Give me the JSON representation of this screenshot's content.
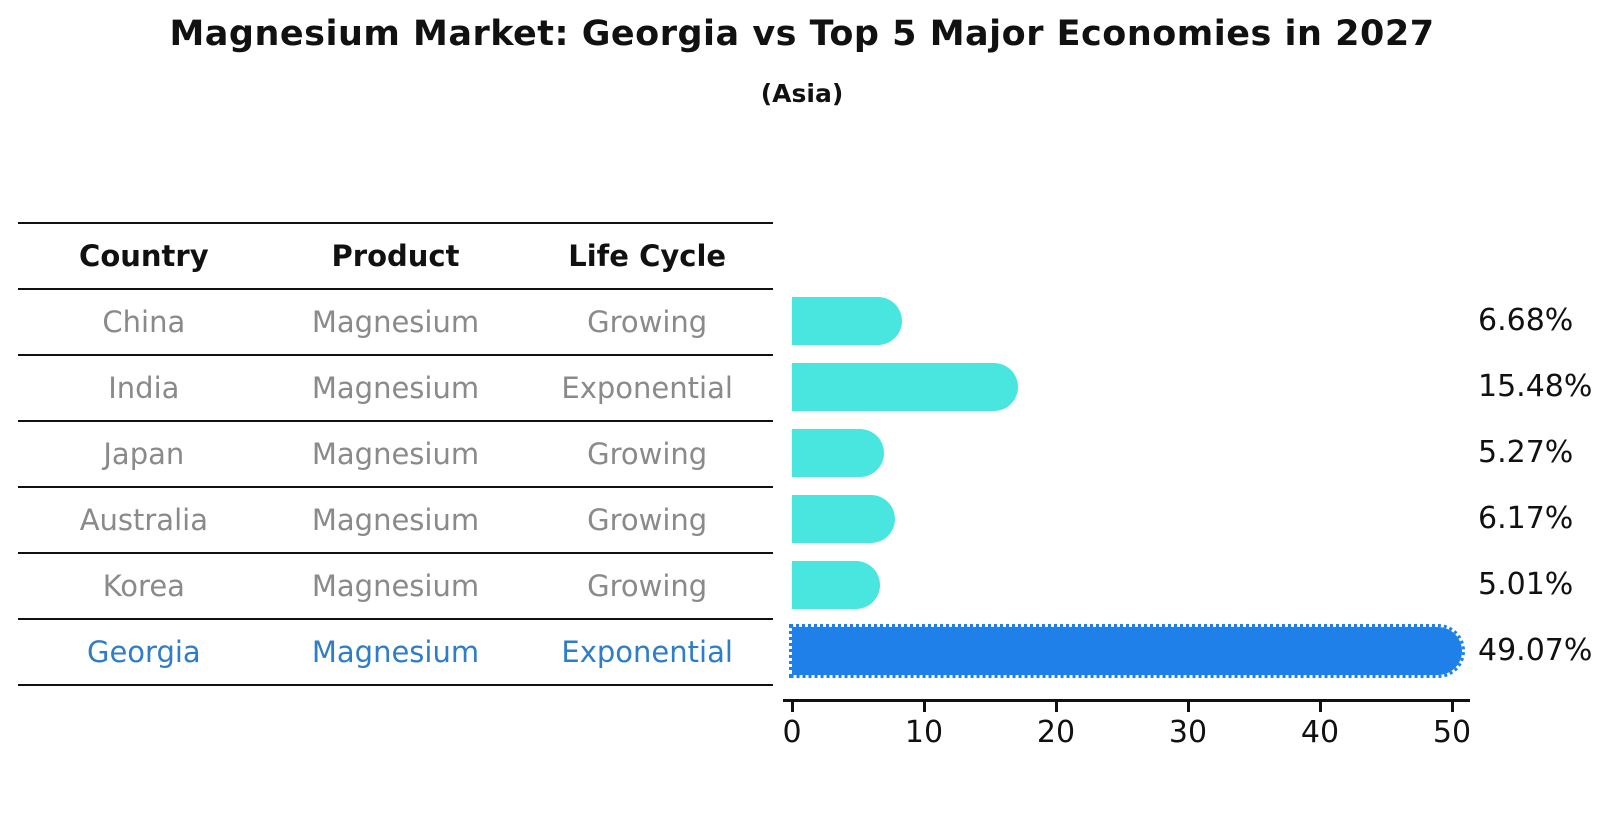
{
  "header": {
    "title": "Magnesium Market: Georgia vs Top 5 Major Economies in 2027",
    "subtitle": "(Asia)"
  },
  "table": {
    "columns": [
      "Country",
      "Product",
      "Life Cycle"
    ],
    "rows": [
      {
        "country": "China",
        "product": "Magnesium",
        "life_cycle": "Growing",
        "highlight": false
      },
      {
        "country": "India",
        "product": "Magnesium",
        "life_cycle": "Exponential",
        "highlight": false
      },
      {
        "country": "Japan",
        "product": "Magnesium",
        "life_cycle": "Growing",
        "highlight": false
      },
      {
        "country": "Australia",
        "product": "Magnesium",
        "life_cycle": "Growing",
        "highlight": false
      },
      {
        "country": "Korea",
        "product": "Magnesium",
        "life_cycle": "Growing",
        "highlight": false
      },
      {
        "country": "Georgia",
        "product": "Magnesium",
        "life_cycle": "Exponential",
        "highlight": true
      }
    ]
  },
  "chart_data": {
    "type": "bar",
    "orientation": "horizontal",
    "title": "Magnesium Market: Georgia vs Top 5 Major Economies in 2027",
    "subtitle": "(Asia)",
    "categories": [
      "China",
      "India",
      "Japan",
      "Australia",
      "Korea",
      "Georgia"
    ],
    "values": [
      6.68,
      15.48,
      5.27,
      6.17,
      5.01,
      49.07
    ],
    "value_labels": [
      "6.68%",
      "15.48%",
      "5.27%",
      "6.17%",
      "5.01%",
      "49.07%"
    ],
    "highlight_category": "Georgia",
    "xlabel": "",
    "ylabel": "",
    "xticks": [
      0,
      10,
      20,
      30,
      40,
      50
    ],
    "xlim": [
      0,
      52
    ],
    "grid": false,
    "legend": null,
    "colors": {
      "default_bar": "#48e6df",
      "highlight_bar": "#1e80e8",
      "highlight_text": "#2e7dc8",
      "table_text": "#8a8a8a",
      "axis_text": "#111111"
    }
  }
}
